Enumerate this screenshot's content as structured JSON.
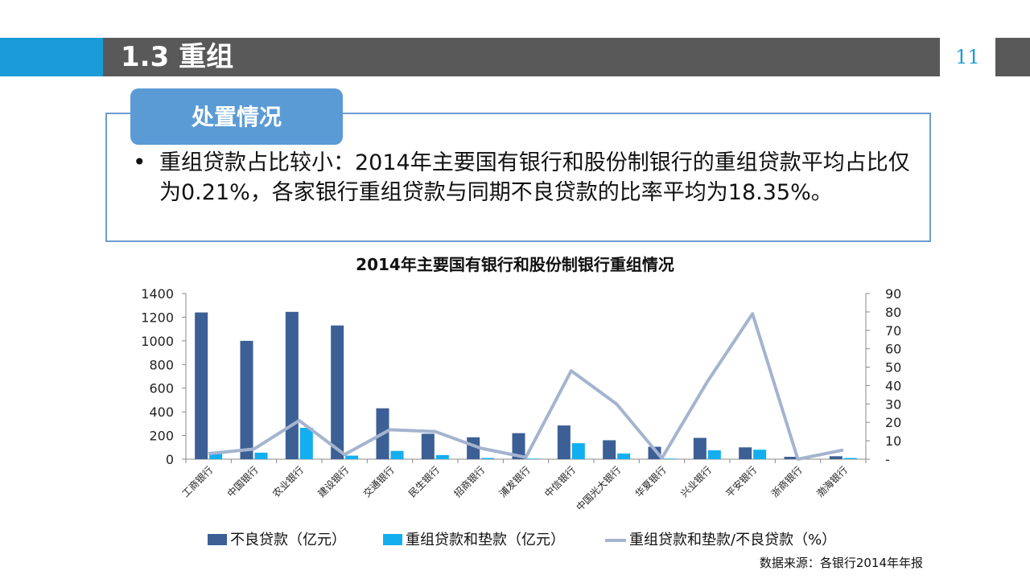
{
  "header": {
    "section_title": "1.3  重组",
    "page_number": "11",
    "colors": {
      "accent_blue": "#1a9bd7",
      "bar_gray": "#595959"
    }
  },
  "callout": {
    "tag": "处置情况",
    "bullet": "重组贷款占比较小：2014年主要国有银行和股份制银行的重组贷款平均占比仅为0.21%，各家银行重组贷款与同期不良贷款的比率平均为18.35%。"
  },
  "source_note": "数据来源：各银行2014年年报",
  "chart_data": {
    "type": "bar",
    "title": "2014年主要国有银行和股份制银行重组情况",
    "categories": [
      "工商银行",
      "中国银行",
      "农业银行",
      "建设银行",
      "交通银行",
      "民生银行",
      "招商银行",
      "浦发银行",
      "中信银行",
      "中国光大银行",
      "华夏银行",
      "兴业银行",
      "平安银行",
      "浙商银行",
      "渤海银行"
    ],
    "series": [
      {
        "name": "不良贷款（亿元）",
        "type": "bar",
        "axis": "left",
        "color": "#3c5f95",
        "values": [
          1240,
          1000,
          1245,
          1130,
          430,
          215,
          185,
          220,
          285,
          160,
          105,
          180,
          100,
          20,
          25
        ]
      },
      {
        "name": "重组贷款和垫款（亿元）",
        "type": "bar",
        "axis": "left",
        "color": "#13aef0",
        "values": [
          50,
          55,
          265,
          30,
          70,
          35,
          10,
          5,
          135,
          48,
          5,
          75,
          80,
          0,
          10
        ]
      },
      {
        "name": "重组贷款和垫款/不良贷款（%）",
        "type": "line",
        "axis": "right",
        "color": "#a4b4cf",
        "values": [
          3,
          5.5,
          21,
          2.5,
          16,
          15,
          6,
          1,
          48,
          30,
          0.5,
          42,
          79,
          0,
          5
        ]
      }
    ],
    "y_left": {
      "min": 0,
      "max": 1400,
      "ticks": [
        "0",
        "200",
        "400",
        "600",
        "800",
        "1000",
        "1200",
        "1400"
      ]
    },
    "y_right": {
      "min": 0,
      "max": 90,
      "ticks": [
        "-",
        "10",
        "20",
        "30",
        "40",
        "50",
        "60",
        "70",
        "80",
        "90"
      ]
    },
    "legend_position": "bottom",
    "grid": false
  }
}
